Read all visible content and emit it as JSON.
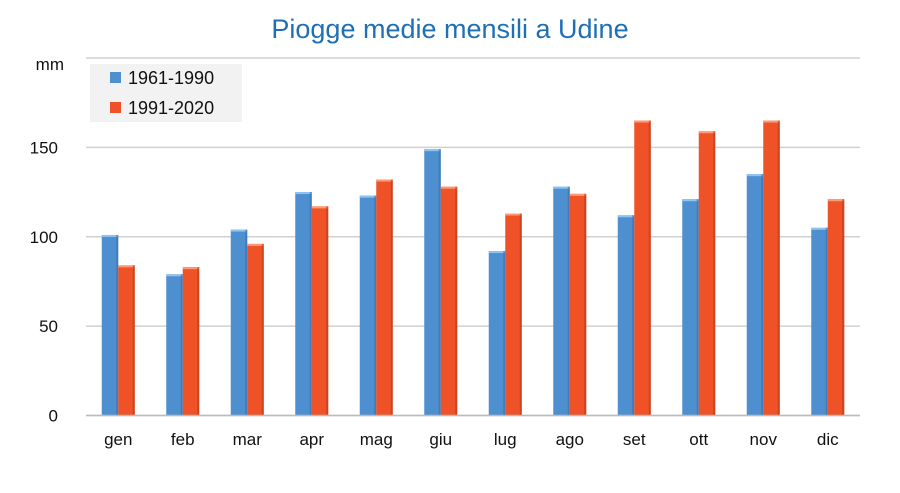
{
  "chart_data": {
    "type": "bar",
    "title": "Piogge medie mensili a Udine",
    "ylabel": "mm",
    "ylim": [
      0,
      200
    ],
    "yticks": [
      0,
      50,
      100,
      150
    ],
    "grid": true,
    "legend_position": "top-left",
    "categories": [
      "gen",
      "feb",
      "mar",
      "apr",
      "mag",
      "giu",
      "lug",
      "ago",
      "set",
      "ott",
      "nov",
      "dic"
    ],
    "series": [
      {
        "name": "1961-1990",
        "color": "#4e8fcf",
        "values": [
          101,
          79,
          104,
          125,
          123,
          149,
          92,
          128,
          112,
          121,
          135,
          105
        ]
      },
      {
        "name": "1991-2020",
        "color": "#f05228",
        "values": [
          84,
          83,
          96,
          117,
          132,
          128,
          113,
          124,
          165,
          159,
          165,
          121
        ]
      }
    ]
  }
}
